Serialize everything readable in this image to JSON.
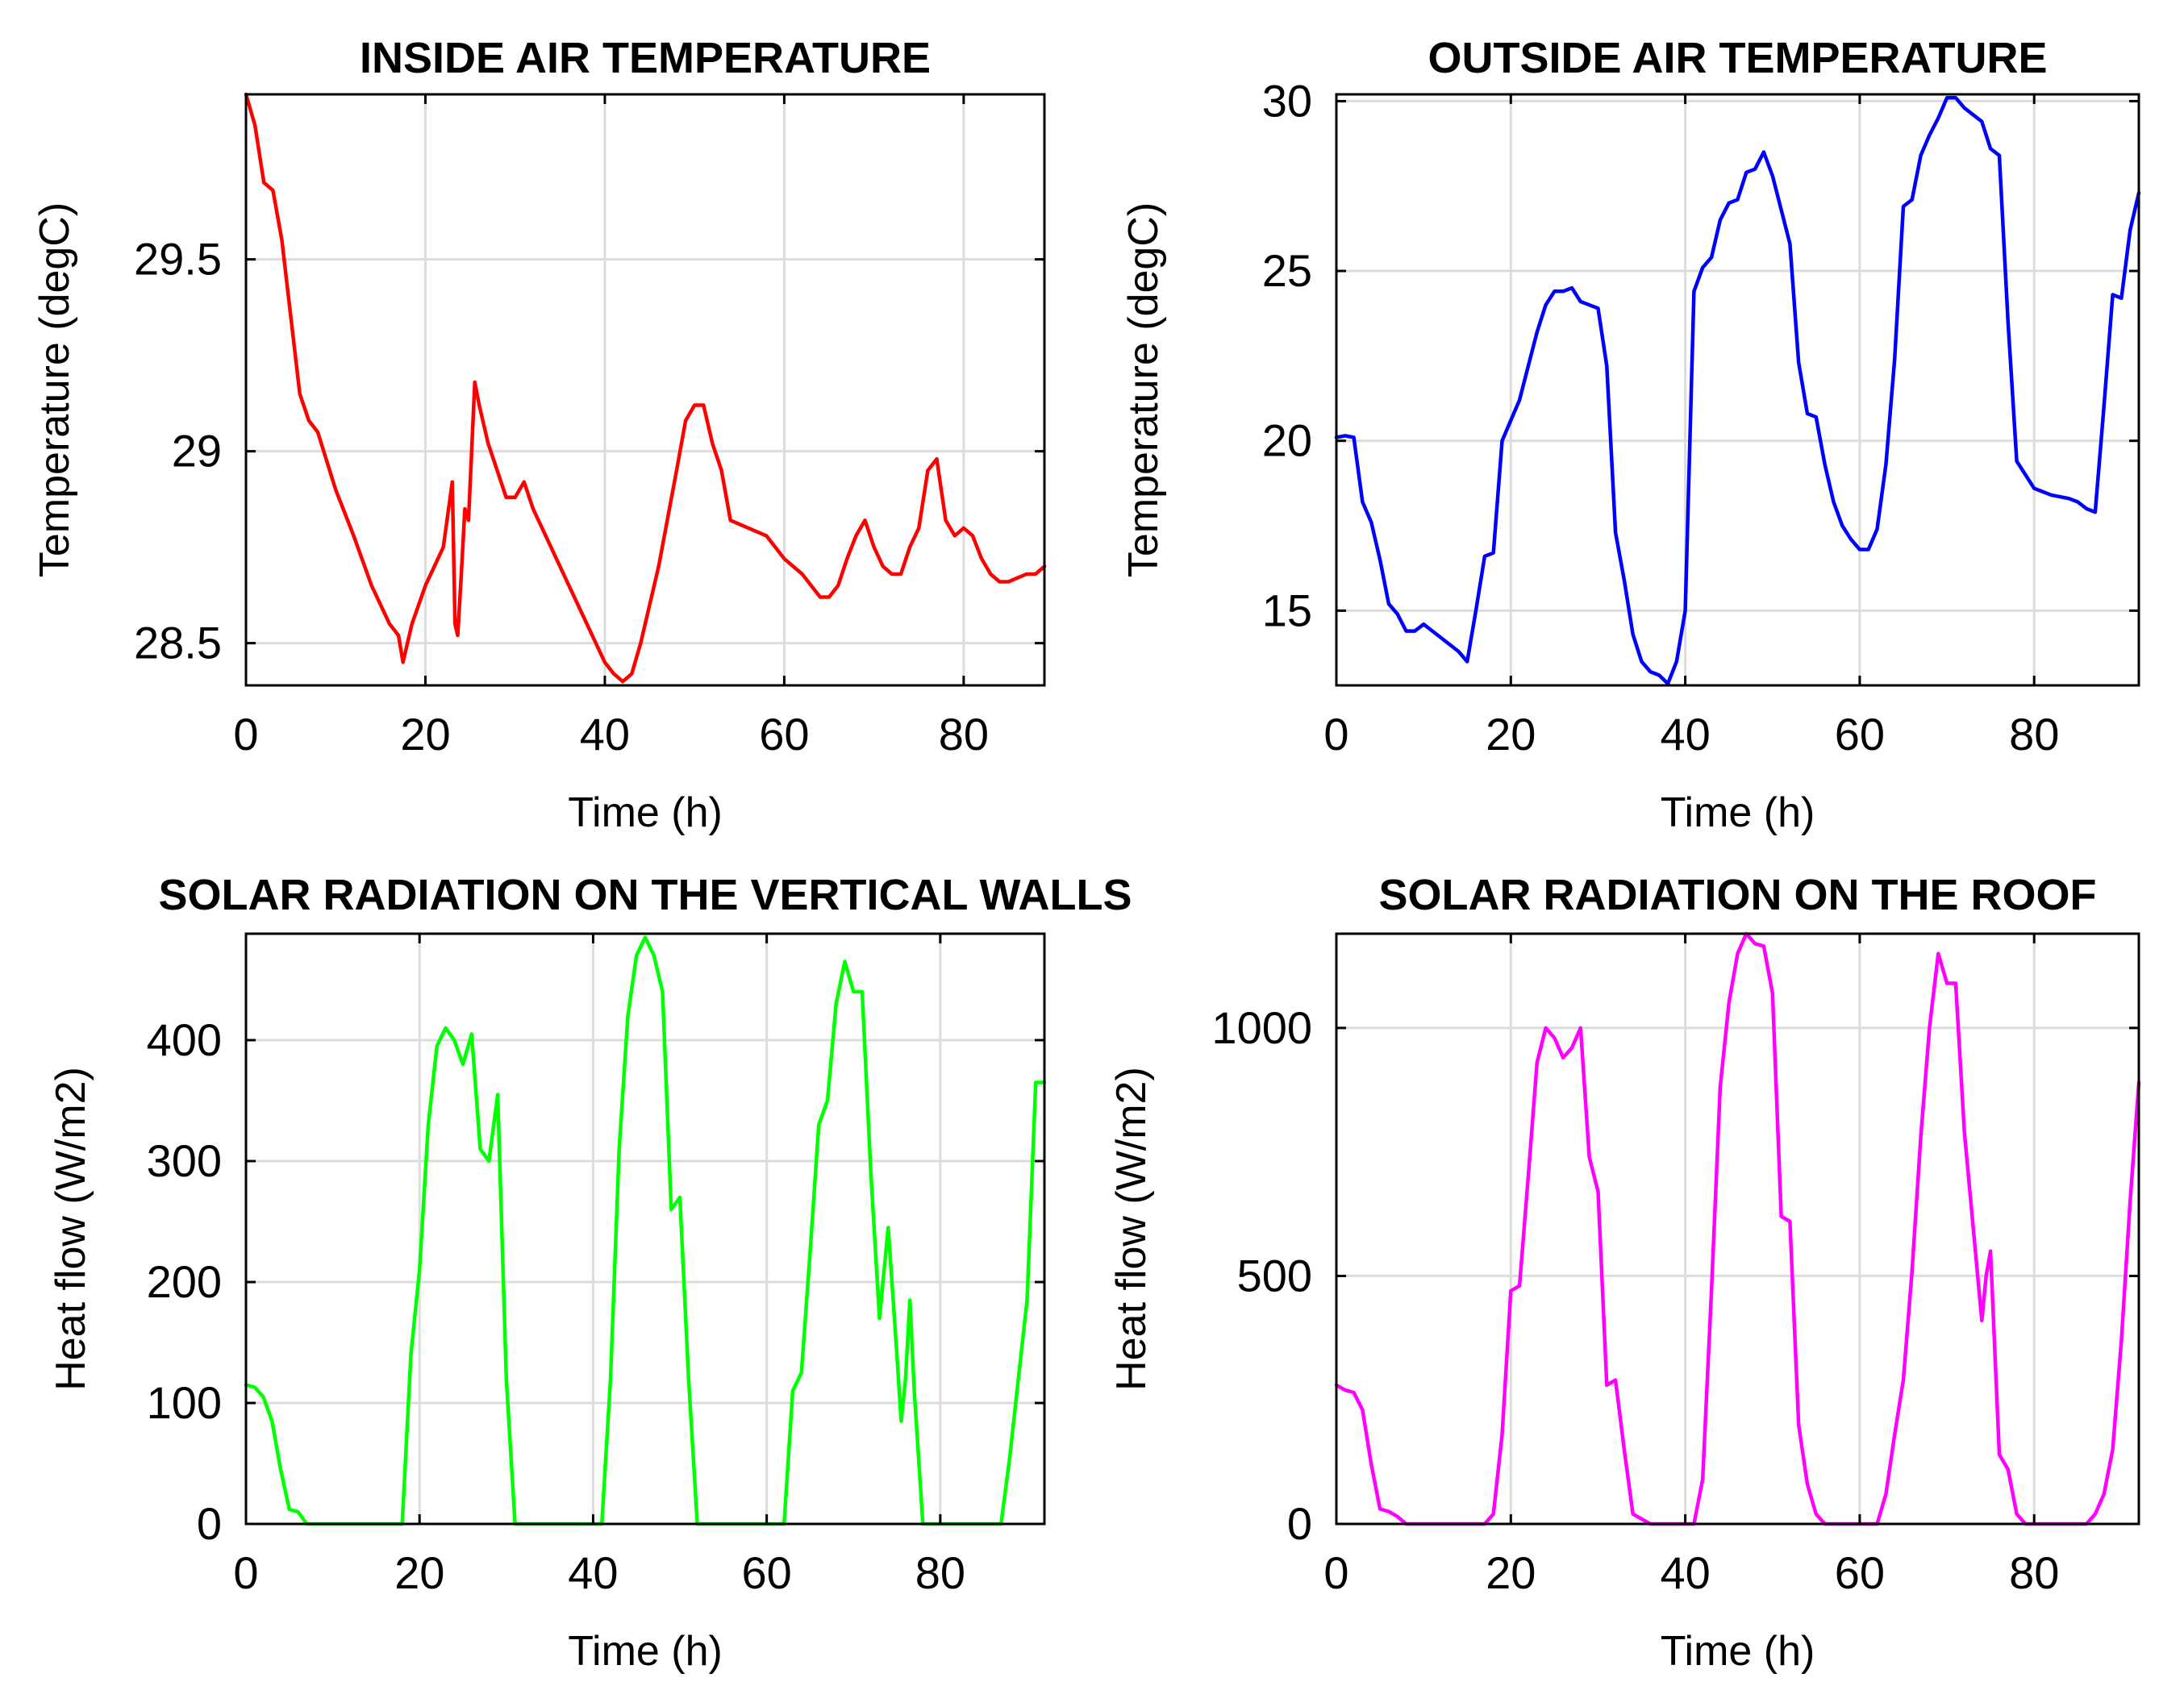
{
  "chart_data": [
    {
      "type": "line",
      "title": "INSIDE AIR TEMPERATURE",
      "xlabel": "Time (h)",
      "ylabel": "Temperature (degC)",
      "xlim": [
        0,
        89
      ],
      "ylim": [
        28.39,
        29.93
      ],
      "xticks": [
        0,
        20,
        40,
        60,
        80
      ],
      "xtick_labels": [
        "0",
        "20",
        "40",
        "60",
        "80"
      ],
      "yticks": [
        28.5,
        29,
        29.5
      ],
      "ytick_labels": [
        "28.5",
        "29",
        "29.5"
      ],
      "grid": true,
      "series": [
        {
          "name": "Inside air temperature",
          "color": "#ff0000",
          "x": [
            0,
            1,
            2,
            3,
            4,
            5,
            6,
            7,
            8,
            10,
            12,
            14,
            16,
            17,
            17.5,
            18.5,
            20,
            22,
            23,
            23.3,
            23.6,
            24,
            24.4,
            24.8,
            25.5,
            26,
            27,
            28,
            29,
            30,
            31,
            32,
            34,
            36,
            38,
            40,
            41,
            42,
            43,
            44,
            46,
            48,
            49,
            50,
            51,
            52,
            53,
            54,
            56,
            58,
            60,
            62,
            64,
            65,
            66,
            67,
            68,
            69,
            70,
            71,
            72,
            73,
            74,
            75,
            76,
            77,
            78,
            79,
            80,
            81,
            82,
            83,
            84,
            85,
            86,
            87,
            88,
            89
          ],
          "values": [
            29.93,
            29.85,
            29.7,
            29.68,
            29.55,
            29.35,
            29.15,
            29.08,
            29.05,
            28.9,
            28.78,
            28.65,
            28.55,
            28.52,
            28.45,
            28.55,
            28.65,
            28.75,
            28.92,
            28.55,
            28.52,
            28.68,
            28.85,
            28.82,
            29.18,
            29.12,
            29.02,
            28.95,
            28.88,
            28.88,
            28.92,
            28.85,
            28.75,
            28.65,
            28.55,
            28.45,
            28.42,
            28.4,
            28.42,
            28.5,
            28.7,
            28.95,
            29.08,
            29.12,
            29.12,
            29.02,
            28.95,
            28.82,
            28.8,
            28.78,
            28.72,
            28.68,
            28.62,
            28.62,
            28.65,
            28.72,
            28.78,
            28.82,
            28.75,
            28.7,
            28.68,
            28.68,
            28.75,
            28.8,
            28.95,
            28.98,
            28.82,
            28.78,
            28.8,
            28.78,
            28.72,
            28.68,
            28.66,
            28.66,
            28.67,
            28.68,
            28.68,
            28.7
          ]
        }
      ]
    },
    {
      "type": "line",
      "title": "OUTSIDE AIR TEMPERATURE",
      "xlabel": "Time (h)",
      "ylabel": "Temperature (degC)",
      "xlim": [
        0,
        92
      ],
      "ylim": [
        12.8,
        30.2
      ],
      "xticks": [
        0,
        20,
        40,
        60,
        80
      ],
      "xtick_labels": [
        "0",
        "20",
        "40",
        "60",
        "80"
      ],
      "yticks": [
        15,
        20,
        25,
        30
      ],
      "ytick_labels": [
        "15",
        "20",
        "25",
        "30"
      ],
      "grid": true,
      "series": [
        {
          "name": "Outside air temperature",
          "color": "#0000ff",
          "x": [
            0,
            1,
            2,
            3,
            4,
            5,
            6,
            7,
            8,
            9,
            10,
            11,
            12,
            13,
            14,
            15,
            16,
            17,
            18,
            19,
            20,
            21,
            22,
            23,
            24,
            25,
            26,
            27,
            28,
            29,
            30,
            31,
            32,
            33,
            34,
            35,
            36,
            37,
            38,
            39,
            40,
            41,
            42,
            43,
            44,
            45,
            46,
            47,
            48,
            49,
            50,
            51,
            52,
            53,
            54,
            55,
            56,
            57,
            58,
            59,
            60,
            61,
            62,
            63,
            64,
            65,
            66,
            67,
            68,
            69,
            70,
            71,
            72,
            73,
            74,
            75,
            76,
            77,
            78,
            79,
            80,
            81,
            82,
            83,
            84,
            85,
            86,
            87,
            88,
            89,
            90,
            91,
            92
          ],
          "values": [
            20.1,
            20.15,
            20.1,
            18.2,
            17.6,
            16.5,
            15.2,
            14.9,
            14.4,
            14.4,
            14.6,
            14.4,
            14.2,
            14.0,
            13.8,
            13.5,
            15.0,
            16.6,
            16.7,
            20.0,
            20.6,
            21.2,
            22.2,
            23.2,
            24.0,
            24.4,
            24.4,
            24.5,
            24.1,
            24.0,
            23.9,
            22.2,
            17.3,
            15.9,
            14.3,
            13.5,
            13.2,
            13.1,
            12.85,
            13.5,
            15.0,
            24.4,
            25.1,
            25.4,
            26.5,
            27.0,
            27.1,
            27.9,
            28.0,
            28.5,
            27.8,
            26.8,
            25.8,
            22.3,
            20.8,
            20.7,
            19.3,
            18.2,
            17.5,
            17.1,
            16.8,
            16.8,
            17.4,
            19.3,
            22.4,
            26.9,
            27.1,
            28.4,
            29.0,
            29.5,
            30.1,
            30.1,
            29.8,
            29.6,
            29.4,
            28.6,
            28.4,
            23.5,
            19.4,
            19.0,
            18.6,
            18.5,
            18.4,
            18.35,
            18.3,
            18.2,
            18.0,
            17.9,
            21.0,
            24.3,
            24.2,
            26.2,
            27.3
          ]
        }
      ]
    },
    {
      "type": "line",
      "title": "SOLAR RADIATION ON THE VERTICAL WALLS",
      "xlabel": "Time (h)",
      "ylabel": "Heat flow (W/m2)",
      "xlim": [
        0,
        92
      ],
      "ylim": [
        0,
        488
      ],
      "xticks": [
        0,
        20,
        40,
        60,
        80
      ],
      "xtick_labels": [
        "0",
        "20",
        "40",
        "60",
        "80"
      ],
      "yticks": [
        0,
        100,
        200,
        300,
        400
      ],
      "ytick_labels": [
        "0",
        "100",
        "200",
        "300",
        "400"
      ],
      "grid": true,
      "series": [
        {
          "name": "Solar radiation on vertical walls",
          "color": "#00ff00",
          "x": [
            0,
            1,
            2,
            3,
            4,
            5,
            6,
            7,
            8,
            10,
            12,
            14,
            16,
            17,
            18,
            19,
            20,
            21,
            22,
            23,
            24,
            25,
            26,
            27,
            28,
            29,
            30,
            31,
            32,
            34,
            36,
            38,
            40,
            41,
            42,
            43,
            44,
            45,
            46,
            47,
            48,
            49,
            50,
            51,
            52,
            53,
            54,
            56,
            58,
            60,
            62,
            63,
            64,
            65,
            66,
            67,
            68,
            69,
            70,
            71,
            72,
            73,
            74,
            75,
            75.5,
            76,
            76.5,
            77,
            78,
            80,
            82,
            84,
            86,
            87,
            88,
            89,
            90,
            91,
            92
          ],
          "values": [
            115,
            113,
            105,
            85,
            45,
            12,
            10,
            0,
            0,
            0,
            0,
            0,
            0,
            0,
            0,
            140,
            210,
            330,
            395,
            410,
            400,
            380,
            405,
            310,
            300,
            355,
            120,
            0,
            0,
            0,
            0,
            0,
            0,
            0,
            120,
            310,
            420,
            470,
            485,
            470,
            440,
            260,
            270,
            120,
            0,
            0,
            0,
            0,
            0,
            0,
            0,
            110,
            125,
            225,
            330,
            350,
            430,
            465,
            440,
            440,
            290,
            170,
            245,
            140,
            85,
            120,
            185,
            110,
            0,
            0,
            0,
            0,
            0,
            0,
            55,
            120,
            185,
            365,
            365
          ]
        }
      ]
    },
    {
      "type": "line",
      "title": "SOLAR RADIATION ON THE ROOF",
      "xlabel": "Time (h)",
      "ylabel": "Heat flow (W/m2)",
      "xlim": [
        0,
        92
      ],
      "ylim": [
        0,
        1190
      ],
      "xticks": [
        0,
        20,
        40,
        60,
        80
      ],
      "xtick_labels": [
        "0",
        "20",
        "40",
        "60",
        "80"
      ],
      "yticks": [
        0,
        500,
        1000
      ],
      "ytick_labels": [
        "0",
        "500",
        "1000"
      ],
      "grid": true,
      "series": [
        {
          "name": "Solar radiation on roof",
          "color": "#ff00ff",
          "x": [
            0,
            1,
            2,
            3,
            4,
            5,
            6,
            7,
            8,
            10,
            12,
            14,
            16,
            17,
            18,
            19,
            20,
            21,
            22,
            23,
            24,
            25,
            26,
            27,
            28,
            29,
            30,
            31,
            32,
            33,
            34,
            36,
            38,
            40,
            41,
            42,
            43,
            44,
            45,
            46,
            47,
            48,
            49,
            50,
            51,
            52,
            53,
            54,
            55,
            56,
            58,
            60,
            62,
            63,
            64,
            65,
            66,
            67,
            68,
            69,
            70,
            71,
            72,
            73,
            74,
            74.5,
            75,
            76,
            77,
            78,
            79,
            80,
            82,
            84,
            86,
            87,
            88,
            89,
            90,
            91,
            92
          ],
          "values": [
            280,
            270,
            265,
            230,
            120,
            30,
            25,
            15,
            0,
            0,
            0,
            0,
            0,
            0,
            20,
            180,
            470,
            480,
            700,
            930,
            1000,
            980,
            940,
            960,
            1000,
            740,
            670,
            280,
            290,
            150,
            20,
            0,
            0,
            0,
            0,
            90,
            470,
            880,
            1050,
            1150,
            1190,
            1170,
            1165,
            1070,
            620,
            610,
            200,
            80,
            20,
            0,
            0,
            0,
            0,
            60,
            180,
            290,
            510,
            780,
            1000,
            1150,
            1090,
            1090,
            790,
            600,
            410,
            500,
            550,
            140,
            110,
            20,
            0,
            0,
            0,
            0,
            0,
            20,
            60,
            150,
            370,
            650,
            890
          ]
        }
      ]
    }
  ]
}
